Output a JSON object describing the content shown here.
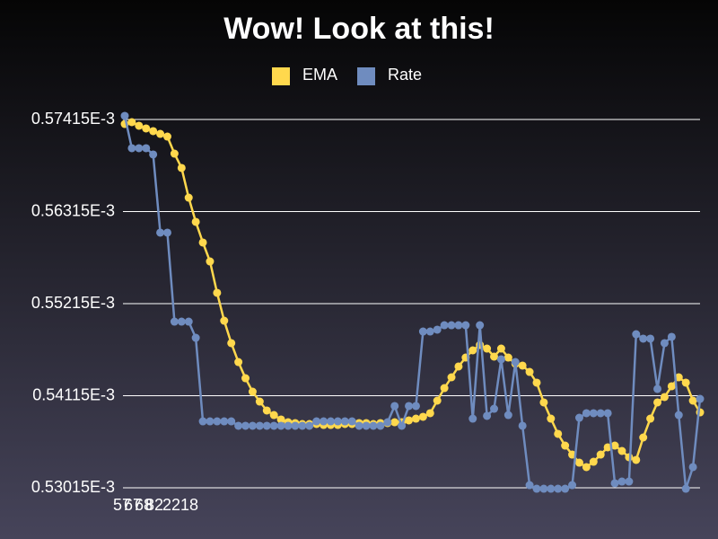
{
  "chart_data": {
    "type": "line",
    "title": "Wow!  Look at this!",
    "legend": "top",
    "grid": true,
    "x_tick_labels": [
      "57",
      "67",
      "68",
      "82",
      "2218"
    ],
    "categories": [
      null,
      null,
      null,
      null,
      null,
      null,
      null,
      null,
      null,
      null,
      null,
      null,
      null,
      null,
      null,
      null,
      null,
      null,
      null,
      null,
      null,
      null,
      null,
      null,
      null,
      null,
      null,
      null,
      null,
      null,
      null,
      null,
      null,
      null,
      null,
      null,
      null,
      null,
      null,
      null,
      null,
      null,
      null,
      null,
      null,
      null,
      null,
      null,
      null,
      null,
      null,
      null,
      null,
      null,
      null,
      null,
      null,
      null,
      null,
      null,
      null,
      null,
      null,
      null,
      null,
      null,
      null,
      null,
      null,
      null,
      null,
      null,
      null,
      null,
      null,
      null,
      null,
      null,
      null,
      null,
      null,
      null
    ],
    "ylim": [
      0.00053015,
      0.00057415
    ],
    "yticks": [
      {
        "value": 0.00053015,
        "label": "0.53015E-3"
      },
      {
        "value": 0.00054115,
        "label": "0.54115E-3"
      },
      {
        "value": 0.00055215,
        "label": "0.55215E-3"
      },
      {
        "value": 0.00056315,
        "label": "0.56315E-3"
      },
      {
        "value": 0.00057415,
        "label": "0.57415E-3"
      }
    ],
    "series": [
      {
        "name": "EMA",
        "color": "#ffd84d",
        "values": [
          0.00057361,
          0.00057383,
          0.0005734,
          0.00057308,
          0.00057276,
          0.00057243,
          0.00057211,
          0.00057007,
          0.00056836,
          0.00056481,
          0.00056192,
          0.00055945,
          0.00055719,
          0.00055344,
          0.00055011,
          0.00054743,
          0.00054517,
          0.00054324,
          0.00054163,
          0.00054045,
          0.00053938,
          0.00053884,
          0.00053831,
          0.00053798,
          0.00053788,
          0.00053777,
          0.00053777,
          0.00053777,
          0.00053766,
          0.00053766,
          0.00053766,
          0.00053777,
          0.00053777,
          0.00053788,
          0.00053788,
          0.00053777,
          0.00053788,
          0.00053788,
          0.00053798,
          0.00053798,
          0.0005382,
          0.00053841,
          0.00053863,
          0.00053906,
          0.00054056,
          0.00054206,
          0.00054335,
          0.00054464,
          0.00054571,
          0.00054657,
          0.00054721,
          0.00054678,
          0.00054582,
          0.00054678,
          0.00054571,
          0.00054496,
          0.00054475,
          0.00054399,
          0.00054271,
          0.00054035,
          0.00053841,
          0.00053659,
          0.00053519,
          0.00053412,
          0.00053315,
          0.00053262,
          0.00053326,
          0.00053412,
          0.00053498,
          0.00053519,
          0.00053455,
          0.0005338,
          0.00053348,
          0.00053616,
          0.00053841,
          0.00054035,
          0.00054099,
          0.00054228,
          0.00054335,
          0.00054271,
          0.00054056,
          0.00053916
        ]
      },
      {
        "name": "Rate",
        "color": "#6f8cbf",
        "values": [
          0.00057458,
          0.00057072,
          0.00057072,
          0.00057072,
          0.00056997,
          0.00056063,
          0.00056063,
          0.00055,
          0.00055,
          0.00055,
          0.00054807,
          0.00053809,
          0.00053809,
          0.00053809,
          0.00053809,
          0.00053809,
          0.00053756,
          0.00053756,
          0.00053756,
          0.00053756,
          0.00053756,
          0.00053756,
          0.00053756,
          0.00053756,
          0.00053756,
          0.00053756,
          0.00053756,
          0.00053809,
          0.00053809,
          0.00053809,
          0.00053809,
          0.00053809,
          0.00053809,
          0.00053756,
          0.00053756,
          0.00053756,
          0.00053756,
          0.00053798,
          0.00053992,
          0.00053756,
          0.00053992,
          0.00053992,
          0.00054882,
          0.00054882,
          0.00054904,
          0.00054957,
          0.00054957,
          0.00054957,
          0.00054957,
          0.00053841,
          0.00054957,
          0.00053874,
          0.00053959,
          0.0005455,
          0.00053884,
          0.00054517,
          0.00053756,
          0.00053047,
          0.00053004,
          0.00053004,
          0.00053004,
          0.00053004,
          0.00053004,
          0.00053047,
          0.00053852,
          0.00053906,
          0.00053906,
          0.00053906,
          0.00053906,
          0.00053069,
          0.0005309,
          0.0005309,
          0.0005485,
          0.00054797,
          0.00054797,
          0.00054196,
          0.00054743,
          0.00054818,
          0.00053884,
          0.00053004,
          0.00053262,
          0.00054077
        ]
      }
    ]
  }
}
